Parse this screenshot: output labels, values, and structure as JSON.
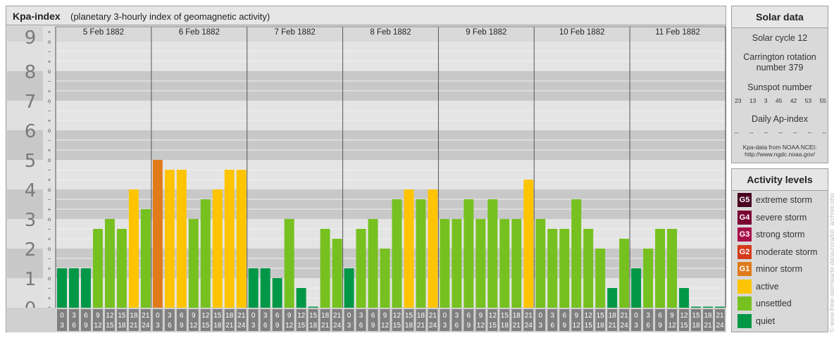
{
  "chart_data": {
    "type": "bar",
    "title": "Kpa-index",
    "subtitle": "(planetary 3-hourly index of geomagnetic activity)",
    "ylim": [
      0,
      9
    ],
    "y_tick_labels": [
      "0",
      "1",
      "2",
      "3",
      "4",
      "5",
      "6",
      "7",
      "8",
      "9"
    ],
    "y_minor_signs": [
      "o",
      "+",
      "−"
    ],
    "days": [
      "5 Feb 1882",
      "6 Feb 1882",
      "7 Feb 1882",
      "8 Feb 1882",
      "9 Feb 1882",
      "10 Feb 1882",
      "11 Feb 1882"
    ],
    "interval_top": [
      "0",
      "3",
      "6",
      "9",
      "12",
      "15",
      "18",
      "21"
    ],
    "interval_bottom": [
      "3",
      "6",
      "9",
      "12",
      "15",
      "18",
      "21",
      "24"
    ],
    "values": [
      [
        1.333,
        1.333,
        1.333,
        2.667,
        3,
        2.667,
        4,
        3.333
      ],
      [
        5,
        4.667,
        4.667,
        3,
        3.667,
        4,
        4.667,
        4.667
      ],
      [
        1.333,
        1.333,
        1,
        3,
        0.667,
        0,
        2.667,
        2.333
      ],
      [
        1.333,
        2.667,
        3,
        2,
        3.667,
        4,
        3.667,
        4
      ],
      [
        3,
        3,
        3.667,
        3,
        3.667,
        3,
        3,
        4.333
      ],
      [
        3,
        2.667,
        2.667,
        3.667,
        2.667,
        2,
        0.667,
        2.333
      ],
      [
        1.333,
        2,
        2.667,
        2.667,
        0.667,
        0,
        0,
        0
      ]
    ],
    "level_colors": {
      "quiet": "#009846",
      "unsettled": "#76c11f",
      "active": "#ffc400",
      "minor": "#e07b1a"
    },
    "grid": true
  },
  "solar": {
    "title": "Solar data",
    "cycle": "Solar cycle 12",
    "carrington": "Carrington rotation number 379",
    "sunspot_title": "Sunspot number",
    "sunspot_values": [
      "23",
      "13",
      "3",
      "45",
      "42",
      "53",
      "55"
    ],
    "ap_title": "Daily Ap-index",
    "ap_values": [
      "--",
      "--",
      "--",
      "--",
      "--",
      "--",
      "--"
    ],
    "source_line1": "Kpa-data from NOAA NCEI:",
    "source_line2": "http://www.ngdc.noaa.gov/"
  },
  "legend": {
    "title": "Activity levels",
    "items": [
      {
        "code": "G5",
        "label": "extreme storm",
        "color": "#4a0022"
      },
      {
        "code": "G4",
        "label": "severe storm",
        "color": "#7a0033"
      },
      {
        "code": "G3",
        "label": "strong storm",
        "color": "#a8104a"
      },
      {
        "code": "G2",
        "label": "moderate storm",
        "color": "#d63a1a"
      },
      {
        "code": "G1",
        "label": "minor storm",
        "color": "#e07b1a"
      },
      {
        "code": "",
        "label": "active",
        "color": "#ffc400"
      },
      {
        "code": "",
        "label": "unsettled",
        "color": "#76c11f"
      },
      {
        "code": "",
        "label": "quiet",
        "color": "#009846"
      }
    ]
  },
  "watermark": "© www.freie-sternwarte.de/aurora/kp_archive.php"
}
